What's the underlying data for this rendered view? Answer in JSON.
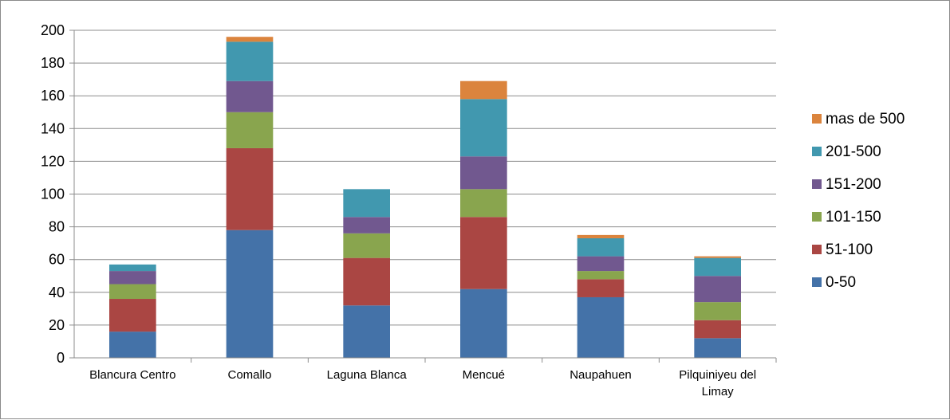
{
  "chart_data": {
    "type": "bar",
    "stacked": true,
    "categories": [
      "Blancura Centro",
      "Comallo",
      "Laguna Blanca",
      "Mencué",
      "Naupahuen",
      "Pilquiniyeu del Limay"
    ],
    "series": [
      {
        "name": "0-50",
        "color": "#4472a8",
        "values": [
          16,
          78,
          32,
          42,
          37,
          12
        ]
      },
      {
        "name": "51-100",
        "color": "#aa4643",
        "values": [
          20,
          50,
          29,
          44,
          11,
          11
        ]
      },
      {
        "name": "101-150",
        "color": "#89a54e",
        "values": [
          9,
          22,
          15,
          17,
          5,
          11
        ]
      },
      {
        "name": "151-200",
        "color": "#71588f",
        "values": [
          8,
          19,
          10,
          20,
          9,
          16
        ]
      },
      {
        "name": "201-500",
        "color": "#4198af",
        "values": [
          4,
          24,
          17,
          35,
          11,
          11
        ]
      },
      {
        "name": "mas de 500",
        "color": "#db843d",
        "values": [
          0,
          3,
          0,
          11,
          2,
          1
        ]
      }
    ],
    "ylim": [
      0,
      200
    ],
    "yticks": [
      0,
      20,
      40,
      60,
      80,
      100,
      120,
      140,
      160,
      180,
      200
    ],
    "grid": true,
    "legend": "right",
    "title": "",
    "xlabel": "",
    "ylabel": ""
  }
}
